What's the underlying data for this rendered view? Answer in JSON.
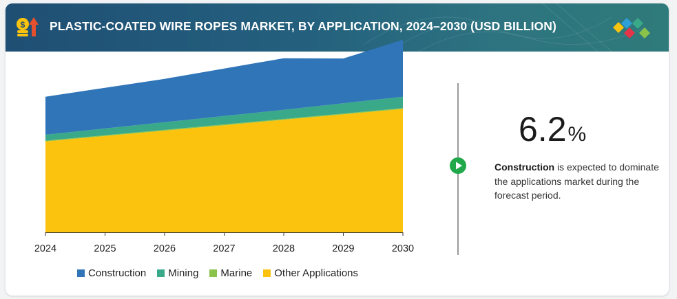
{
  "header": {
    "title": "PLASTIC-COATED WIRE ROPES MARKET, BY APPLICATION, 2024–2030 (USD BILLION)"
  },
  "highlight": {
    "cagr_value": "6.2",
    "cagr_unit": "%",
    "segment": "Construction",
    "description": " is expected to dominate the applications market during the forecast period."
  },
  "colors": {
    "construction": "#2f75b8",
    "mining": "#3aa98a",
    "marine": "#8bc34a",
    "other": "#fbc30e",
    "header_start": "#1f4f74",
    "header_end": "#2f7a7a"
  },
  "chart_data": {
    "type": "area",
    "stacked": true,
    "title": "PLASTIC-COATED WIRE ROPES MARKET, BY APPLICATION, 2024–2030 (USD BILLION)",
    "x": [
      2024,
      2025,
      2026,
      2027,
      2028,
      2029,
      2030
    ],
    "series": [
      {
        "name": "Other Applications",
        "values": [
          3.35,
          3.55,
          3.75,
          3.95,
          4.15,
          4.35,
          4.55
        ]
      },
      {
        "name": "Marine",
        "values": [
          0.03,
          0.03,
          0.03,
          0.03,
          0.03,
          0.03,
          0.03
        ]
      },
      {
        "name": "Mining",
        "values": [
          0.22,
          0.25,
          0.28,
          0.31,
          0.34,
          0.38,
          0.42
        ]
      },
      {
        "name": "Construction",
        "values": [
          1.4,
          1.5,
          1.6,
          1.75,
          1.9,
          1.65,
          2.1
        ]
      }
    ],
    "ylim": [
      0,
      7.3
    ],
    "xlabel": "",
    "ylabel": "",
    "grid": false,
    "legend": [
      "Construction",
      "Mining",
      "Marine",
      "Other Applications"
    ],
    "legend_position": "bottom"
  }
}
